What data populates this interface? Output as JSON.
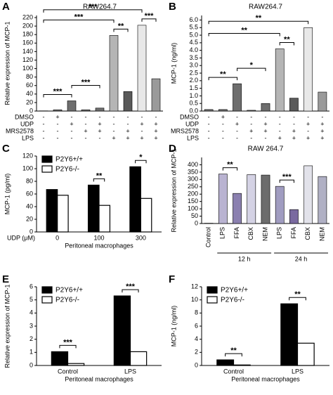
{
  "chart_data": [
    {
      "type": "bar",
      "label": "A",
      "title": "RAW264.7",
      "y_label": "Relative expression of MCP-1",
      "ylim": [
        0,
        225
      ],
      "yticks": [
        0,
        20,
        40,
        60,
        80,
        100,
        120,
        140,
        160,
        180,
        200,
        220
      ],
      "values": [
        0.5,
        3,
        24,
        3,
        7,
        178,
        46,
        202,
        76
      ],
      "colors": [
        "#6e6e6e",
        "#6e6e6e",
        "#6e6e6e",
        "#6e6e6e",
        "#6e6e6e",
        "#b5b5b5",
        "#5a5a5a",
        "#e8e8e8",
        "#9a9a9a"
      ],
      "conditions": [
        {
          "name": "DMSO",
          "signs": [
            "-",
            "+",
            "-",
            "-",
            "-",
            "-",
            "-",
            "-",
            "-"
          ]
        },
        {
          "name": "UDP",
          "signs": [
            "-",
            "-",
            "+",
            "-",
            "+",
            "-",
            "-",
            "+",
            "+"
          ]
        },
        {
          "name": "MRS2578",
          "signs": [
            "-",
            "-",
            "-",
            "+",
            "+",
            "-",
            "+",
            "-",
            "+"
          ]
        },
        {
          "name": "LPS",
          "signs": [
            "-",
            "-",
            "-",
            "-",
            "-",
            "+",
            "+",
            "+",
            "+"
          ]
        }
      ],
      "annotations": [
        {
          "from": 0,
          "to": 2,
          "label": "***"
        },
        {
          "from": 2,
          "to": 4,
          "label": "***"
        },
        {
          "from": 5,
          "to": 6,
          "label": "**"
        },
        {
          "from": 7,
          "to": 8,
          "label": "***"
        },
        {
          "from": 0,
          "to": 5,
          "label": "***"
        },
        {
          "from": 0,
          "to": 7,
          "label": "***"
        }
      ]
    },
    {
      "type": "bar",
      "label": "B",
      "title": "RAW264.7",
      "y_label": "MCP-1 (ng/ml)",
      "ylim": [
        0,
        6.3
      ],
      "yticks": [
        {
          "value": 0,
          "label": "0.0"
        },
        0.5,
        {
          "value": 1,
          "label": "1.0"
        },
        1.5,
        {
          "value": 2,
          "label": "2.0"
        },
        2.5,
        {
          "value": 3,
          "label": "3.0"
        },
        3.5,
        {
          "value": 4,
          "label": "4.0"
        },
        4.5,
        {
          "value": 5,
          "label": "5.0"
        },
        5.5,
        {
          "value": 6,
          "label": "6.0"
        }
      ],
      "values": [
        0.1,
        0.1,
        1.8,
        0.05,
        0.5,
        4.1,
        0.85,
        5.5,
        1.25
      ],
      "colors": [
        "#6e6e6e",
        "#6e6e6e",
        "#6e6e6e",
        "#6e6e6e",
        "#6e6e6e",
        "#b5b5b5",
        "#5a5a5a",
        "#e8e8e8",
        "#9a9a9a"
      ],
      "conditions": [
        {
          "name": "DMSO",
          "signs": [
            "-",
            "+",
            "-",
            "-",
            "-",
            "-",
            "-",
            "-",
            "-"
          ]
        },
        {
          "name": "UDP",
          "signs": [
            "-",
            "-",
            "+",
            "-",
            "+",
            "-",
            "-",
            "+",
            "+"
          ]
        },
        {
          "name": "MRS2578",
          "signs": [
            "-",
            "-",
            "-",
            "+",
            "+",
            "-",
            "+",
            "-",
            "+"
          ]
        },
        {
          "name": "LPS",
          "signs": [
            "-",
            "-",
            "-",
            "-",
            "-",
            "+",
            "+",
            "+",
            "+"
          ]
        }
      ],
      "annotations": [
        {
          "from": 0,
          "to": 2,
          "label": "**"
        },
        {
          "from": 2,
          "to": 4,
          "label": "*"
        },
        {
          "from": 5,
          "to": 6,
          "label": "**"
        },
        {
          "from": 0,
          "to": 5,
          "label": "**"
        },
        {
          "from": 0,
          "to": 7,
          "label": "**"
        }
      ]
    },
    {
      "type": "grouped_bar",
      "label": "C",
      "y_label": "MCP-1 (pg/ml)",
      "x_prefix": "UDP (μM)",
      "x_label": "Peritoneal macrophages",
      "ylim": [
        0,
        120
      ],
      "yticks": [
        0,
        20,
        40,
        60,
        80,
        100,
        120
      ],
      "categories": [
        "0",
        "100",
        "300"
      ],
      "series": [
        {
          "name": "P2Y6+/+",
          "color": "#000000",
          "values": [
            67,
            74,
            103
          ]
        },
        {
          "name": "P2Y6-/-",
          "color": "#ffffff",
          "values": [
            58,
            42,
            53
          ]
        }
      ],
      "annotations": [
        {
          "category": 1,
          "label": "**"
        },
        {
          "category": 2,
          "label": "*"
        }
      ]
    },
    {
      "type": "bar",
      "label": "D",
      "title": "RAW 264.7",
      "y_label": "Relative expression of MCP-1",
      "ylim": [
        0,
        450
      ],
      "yticks": [
        0,
        50,
        100,
        150,
        200,
        250,
        300,
        350,
        400
      ],
      "categories": [
        "Control",
        "LPS",
        "FFA",
        "CBX",
        "NEM",
        "LPS",
        "FFA",
        "CBX",
        "NEM"
      ],
      "values": [
        2,
        337,
        205,
        333,
        330,
        253,
        95,
        393,
        320
      ],
      "colors": [
        "#6e6e6e",
        "#b9b3d1",
        "#8b80b0",
        "#d4d2e4",
        "#6c6c6c",
        "#a09cc0",
        "#7a6aa0",
        "#e2e2ea",
        "#b0b0c4"
      ],
      "groups": [
        {
          "label": "12 h",
          "from": 1,
          "to": 4
        },
        {
          "label": "24 h",
          "from": 5,
          "to": 8
        }
      ],
      "annotations": [
        {
          "from": 1,
          "to": 2,
          "label": "**"
        },
        {
          "from": 5,
          "to": 6,
          "label": "***"
        }
      ]
    },
    {
      "type": "grouped_bar",
      "label": "E",
      "y_label": "Relative expression of MCP-1",
      "x_label": "Peritoneal macrophages",
      "ylim": [
        0,
        6
      ],
      "yticks": [
        0,
        1,
        2,
        3,
        4,
        5,
        6
      ],
      "categories": [
        "Control",
        "LPS"
      ],
      "series": [
        {
          "name": "P2Y6+/+",
          "color": "#000000",
          "values": [
            1.05,
            5.3
          ]
        },
        {
          "name": "P2Y6-/-",
          "color": "#ffffff",
          "values": [
            0.15,
            1.05
          ]
        }
      ],
      "annotations": [
        {
          "category": 0,
          "label": "***"
        },
        {
          "category": 1,
          "label": "***"
        }
      ]
    },
    {
      "type": "grouped_bar",
      "label": "F",
      "y_label": "MCP-1 (ng/ml)",
      "x_label": "Peritoneal macrophages",
      "ylim": [
        0,
        12
      ],
      "yticks": [
        0,
        2,
        4,
        6,
        8,
        10,
        12
      ],
      "categories": [
        "Control",
        "LPS"
      ],
      "series": [
        {
          "name": "P2Y6+/+",
          "color": "#000000",
          "values": [
            0.85,
            9.4
          ]
        },
        {
          "name": "P2Y6-/-",
          "color": "#ffffff",
          "values": [
            0.08,
            3.4
          ]
        }
      ],
      "annotations": [
        {
          "category": 0,
          "label": "**"
        },
        {
          "category": 1,
          "label": "**"
        }
      ]
    }
  ]
}
